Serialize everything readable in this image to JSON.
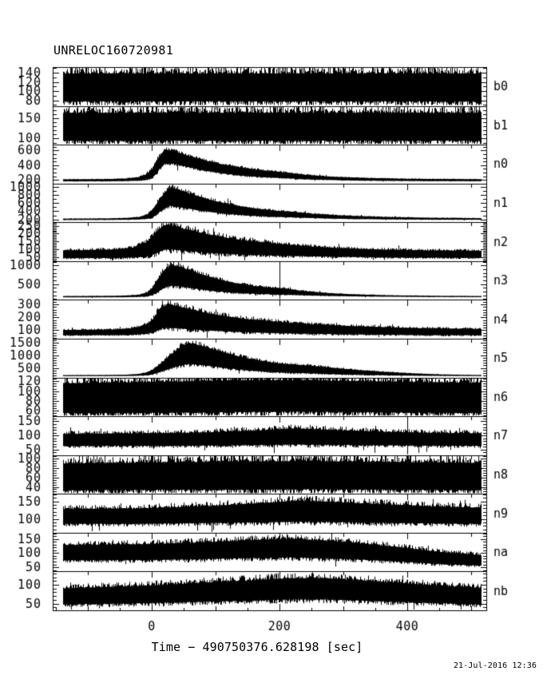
{
  "header": {
    "title": "UNRELOC160720981"
  },
  "footer": {
    "timestamp": "21-Jul-2016 12:36"
  },
  "colors": {
    "foreground": "#000000",
    "background": "#ffffff"
  },
  "chart_data": {
    "type": "line",
    "subtype": "seismogram-multi-panel",
    "title": "UNRELOC160720981",
    "xlabel": "Time − 490750376.628198 [sec]",
    "x_range": [
      -155,
      524
    ],
    "x_ticks": [
      0,
      200,
      400
    ],
    "x_boundary_tick_step": 100,
    "grid": false,
    "legend": false,
    "channels": [
      {
        "label": "b0",
        "y_range": [
          68,
          152
        ],
        "y_ticks": [
          80,
          100,
          120,
          140
        ],
        "y_minor_step": 10,
        "jitter": 0.28,
        "envelope": [
          [
            -140,
            78,
            138
          ],
          [
            515,
            78,
            138
          ]
        ],
        "spikes": []
      },
      {
        "label": "b1",
        "y_range": [
          85,
          180
        ],
        "y_ticks": [
          100,
          150
        ],
        "y_minor_step": 10,
        "jitter": 0.3,
        "envelope": [
          [
            -140,
            95,
            163
          ],
          [
            515,
            95,
            163
          ]
        ],
        "spikes": []
      },
      {
        "label": "n0",
        "y_range": [
          150,
          680
        ],
        "y_ticks": [
          200,
          400,
          600
        ],
        "y_minor_step": 50,
        "jitter": 0.22,
        "envelope": [
          [
            -140,
            180,
            206
          ],
          [
            -70,
            181,
            210
          ],
          [
            -40,
            184,
            218
          ],
          [
            -20,
            190,
            238
          ],
          [
            -8,
            200,
            280
          ],
          [
            0,
            225,
            350
          ],
          [
            6,
            280,
            450
          ],
          [
            12,
            350,
            530
          ],
          [
            20,
            420,
            615
          ],
          [
            30,
            430,
            600
          ],
          [
            45,
            400,
            560
          ],
          [
            60,
            370,
            520
          ],
          [
            80,
            330,
            470
          ],
          [
            105,
            295,
            420
          ],
          [
            135,
            262,
            375
          ],
          [
            165,
            240,
            338
          ],
          [
            195,
            228,
            310
          ],
          [
            210,
            222,
            300
          ],
          [
            240,
            208,
            268
          ],
          [
            280,
            198,
            242
          ],
          [
            330,
            190,
            226
          ],
          [
            400,
            185,
            214
          ],
          [
            515,
            182,
            208
          ]
        ],
        "spikes": []
      },
      {
        "label": "n1",
        "y_range": [
          130,
          1080
        ],
        "y_ticks": [
          200,
          400,
          600,
          800,
          1000
        ],
        "y_minor_step": 100,
        "jitter": 0.22,
        "envelope": [
          [
            -140,
            188,
            218
          ],
          [
            -70,
            190,
            224
          ],
          [
            -40,
            194,
            235
          ],
          [
            -20,
            202,
            260
          ],
          [
            -8,
            215,
            320
          ],
          [
            0,
            245,
            420
          ],
          [
            6,
            310,
            560
          ],
          [
            12,
            400,
            700
          ],
          [
            20,
            480,
            860
          ],
          [
            28,
            540,
            980
          ],
          [
            40,
            510,
            930
          ],
          [
            55,
            470,
            850
          ],
          [
            75,
            420,
            750
          ],
          [
            100,
            365,
            640
          ],
          [
            130,
            320,
            545
          ],
          [
            160,
            288,
            470
          ],
          [
            195,
            262,
            408
          ],
          [
            215,
            255,
            395
          ],
          [
            250,
            235,
            340
          ],
          [
            300,
            215,
            295
          ],
          [
            360,
            204,
            262
          ],
          [
            440,
            196,
            240
          ],
          [
            515,
            193,
            230
          ]
        ],
        "spikes": []
      },
      {
        "label": "n2",
        "y_range": [
          25,
          272
        ],
        "y_ticks": [
          50,
          100,
          150,
          200,
          250
        ],
        "y_minor_step": 10,
        "jitter": 0.26,
        "envelope": [
          [
            -140,
            44,
            92
          ],
          [
            -60,
            45,
            98
          ],
          [
            -30,
            48,
            110
          ],
          [
            -12,
            54,
            135
          ],
          [
            0,
            64,
            175
          ],
          [
            8,
            80,
            218
          ],
          [
            16,
            95,
            245
          ],
          [
            26,
            102,
            258
          ],
          [
            40,
            96,
            240
          ],
          [
            60,
            88,
            220
          ],
          [
            85,
            80,
            196
          ],
          [
            115,
            72,
            174
          ],
          [
            145,
            67,
            156
          ],
          [
            180,
            62,
            142
          ],
          [
            215,
            58,
            128
          ],
          [
            255,
            55,
            116
          ],
          [
            300,
            52,
            106
          ],
          [
            360,
            49,
            98
          ],
          [
            430,
            47,
            93
          ],
          [
            515,
            46,
            90
          ]
        ],
        "spikes": []
      },
      {
        "label": "n3",
        "y_range": [
          80,
          1120
        ],
        "y_ticks": [
          500,
          1000
        ],
        "y_minor_step": 100,
        "jitter": 0.22,
        "envelope": [
          [
            -140,
            150,
            182
          ],
          [
            -70,
            151,
            186
          ],
          [
            -40,
            154,
            196
          ],
          [
            -20,
            162,
            220
          ],
          [
            -8,
            175,
            280
          ],
          [
            0,
            205,
            400
          ],
          [
            6,
            260,
            560
          ],
          [
            12,
            330,
            720
          ],
          [
            20,
            420,
            900
          ],
          [
            30,
            470,
            1020
          ],
          [
            42,
            450,
            970
          ],
          [
            58,
            410,
            880
          ],
          [
            78,
            360,
            760
          ],
          [
            102,
            310,
            640
          ],
          [
            130,
            272,
            530
          ],
          [
            160,
            245,
            450
          ],
          [
            190,
            228,
            400
          ],
          [
            205,
            224,
            390
          ],
          [
            235,
            205,
            320
          ],
          [
            275,
            188,
            262
          ],
          [
            320,
            175,
            225
          ],
          [
            380,
            165,
            200
          ],
          [
            450,
            158,
            188
          ],
          [
            515,
            155,
            182
          ]
        ],
        "spikes": [
          200
        ]
      },
      {
        "label": "n4",
        "y_range": [
          35,
          335
        ],
        "y_ticks": [
          100,
          200,
          300
        ],
        "y_minor_step": 20,
        "jitter": 0.24,
        "envelope": [
          [
            -140,
            62,
            102
          ],
          [
            -60,
            63,
            106
          ],
          [
            -30,
            66,
            116
          ],
          [
            -12,
            72,
            138
          ],
          [
            0,
            82,
            175
          ],
          [
            8,
            100,
            235
          ],
          [
            16,
            115,
            275
          ],
          [
            26,
            122,
            305
          ],
          [
            40,
            116,
            285
          ],
          [
            60,
            108,
            262
          ],
          [
            85,
            99,
            232
          ],
          [
            115,
            92,
            208
          ],
          [
            145,
            86,
            188
          ],
          [
            180,
            81,
            172
          ],
          [
            215,
            77,
            158
          ],
          [
            255,
            73,
            146
          ],
          [
            300,
            70,
            135
          ],
          [
            360,
            66,
            124
          ],
          [
            430,
            63,
            115
          ],
          [
            515,
            61,
            110
          ]
        ],
        "spikes": []
      },
      {
        "label": "n5",
        "y_range": [
          120,
          1650
        ],
        "y_ticks": [
          500,
          1000,
          1500
        ],
        "y_minor_step": 100,
        "jitter": 0.22,
        "envelope": [
          [
            -140,
            176,
            212
          ],
          [
            -70,
            178,
            218
          ],
          [
            -40,
            182,
            230
          ],
          [
            -22,
            190,
            256
          ],
          [
            -10,
            205,
            310
          ],
          [
            0,
            235,
            420
          ],
          [
            8,
            300,
            560
          ],
          [
            16,
            370,
            720
          ],
          [
            24,
            440,
            900
          ],
          [
            34,
            520,
            1120
          ],
          [
            44,
            600,
            1320
          ],
          [
            55,
            650,
            1450
          ],
          [
            68,
            640,
            1430
          ],
          [
            85,
            590,
            1310
          ],
          [
            105,
            525,
            1160
          ],
          [
            128,
            460,
            1000
          ],
          [
            152,
            400,
            860
          ],
          [
            178,
            350,
            740
          ],
          [
            205,
            315,
            655
          ],
          [
            230,
            295,
            610
          ],
          [
            245,
            290,
            600
          ],
          [
            265,
            268,
            540
          ],
          [
            295,
            242,
            470
          ],
          [
            330,
            222,
            400
          ],
          [
            370,
            205,
            330
          ],
          [
            415,
            192,
            272
          ],
          [
            460,
            184,
            235
          ],
          [
            515,
            180,
            215
          ]
        ],
        "spikes": []
      },
      {
        "label": "n6",
        "y_range": [
          48,
          128
        ],
        "y_ticks": [
          60,
          80,
          100,
          120
        ],
        "y_minor_step": 5,
        "jitter": 0.3,
        "envelope": [
          [
            -140,
            55,
            116
          ],
          [
            -40,
            55,
            118
          ],
          [
            60,
            56,
            120
          ],
          [
            140,
            57,
            122
          ],
          [
            220,
            58,
            122
          ],
          [
            300,
            57,
            121
          ],
          [
            380,
            56,
            119
          ],
          [
            515,
            55,
            117
          ]
        ],
        "spikes": []
      },
      {
        "label": "n7",
        "y_range": [
          30,
          168
        ],
        "y_ticks": [
          50,
          100,
          150
        ],
        "y_minor_step": 10,
        "jitter": 0.28,
        "envelope": [
          [
            -140,
            63,
            105
          ],
          [
            -20,
            63,
            107
          ],
          [
            80,
            64,
            110
          ],
          [
            160,
            66,
            117
          ],
          [
            220,
            68,
            124
          ],
          [
            280,
            67,
            120
          ],
          [
            360,
            65,
            113
          ],
          [
            440,
            64,
            109
          ],
          [
            515,
            63,
            107
          ]
        ],
        "spikes": [
          400
        ]
      },
      {
        "label": "n8",
        "y_range": [
          25,
          108
        ],
        "y_ticks": [
          40,
          60,
          80,
          100
        ],
        "y_minor_step": 5,
        "jitter": 0.3,
        "envelope": [
          [
            -140,
            33,
            90
          ],
          [
            0,
            34,
            92
          ],
          [
            120,
            34,
            94
          ],
          [
            250,
            35,
            95
          ],
          [
            380,
            34,
            93
          ],
          [
            515,
            33,
            91
          ]
        ],
        "spikes": []
      },
      {
        "label": "n9",
        "y_range": [
          60,
          172
        ],
        "y_ticks": [
          100,
          150
        ],
        "y_minor_step": 10,
        "jitter": 0.28,
        "envelope": [
          [
            -140,
            86,
            128
          ],
          [
            -20,
            86,
            130
          ],
          [
            80,
            88,
            136
          ],
          [
            160,
            90,
            144
          ],
          [
            230,
            92,
            152
          ],
          [
            290,
            91,
            148
          ],
          [
            360,
            89,
            142
          ],
          [
            440,
            87,
            136
          ],
          [
            515,
            86,
            132
          ]
        ],
        "spikes": []
      },
      {
        "label": "na",
        "y_range": [
          35,
          172
        ],
        "y_ticks": [
          50,
          100,
          150
        ],
        "y_minor_step": 10,
        "jitter": 0.28,
        "envelope": [
          [
            -140,
            75,
            128
          ],
          [
            -20,
            76,
            131
          ],
          [
            60,
            78,
            136
          ],
          [
            140,
            82,
            144
          ],
          [
            210,
            85,
            150
          ],
          [
            270,
            82,
            144
          ],
          [
            330,
            77,
            133
          ],
          [
            390,
            70,
            120
          ],
          [
            450,
            62,
            104
          ],
          [
            515,
            56,
            92
          ]
        ],
        "spikes": []
      },
      {
        "label": "nb",
        "y_range": [
          32,
          135
        ],
        "y_ticks": [
          50,
          100
        ],
        "y_minor_step": 10,
        "jitter": 0.28,
        "envelope": [
          [
            -140,
            48,
            90
          ],
          [
            -40,
            50,
            95
          ],
          [
            60,
            54,
            103
          ],
          [
            150,
            58,
            111
          ],
          [
            220,
            61,
            117
          ],
          [
            270,
            61,
            117
          ],
          [
            330,
            58,
            111
          ],
          [
            400,
            54,
            103
          ],
          [
            470,
            50,
            95
          ],
          [
            515,
            48,
            91
          ]
        ],
        "spikes": []
      }
    ]
  }
}
